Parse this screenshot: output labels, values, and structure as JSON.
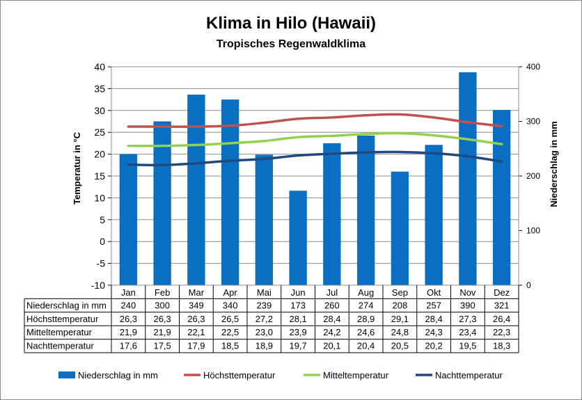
{
  "chart_data": {
    "type": "bar+line",
    "title": "Klima in Hilo (Hawaii)",
    "subtitle": "Tropisches Regenwaldklima",
    "ylabel_left": "Temperatur in °C",
    "ylabel_right": "Niederschlag in mm",
    "ylim_left": [
      -10,
      40
    ],
    "yticks_left": [
      "40",
      "35",
      "30",
      "25",
      "20",
      "15",
      "10",
      "5",
      "0",
      "-5",
      "-10"
    ],
    "ylim_right": [
      0,
      400
    ],
    "yticks_right": [
      "400",
      "300",
      "200",
      "100",
      "0"
    ],
    "grid": true,
    "legend_position": "bottom",
    "categories": [
      "Jan",
      "Feb",
      "Mar",
      "Apr",
      "Mai",
      "Jun",
      "Jul",
      "Aug",
      "Sep",
      "Okt",
      "Nov",
      "Dez"
    ],
    "series": [
      {
        "name": "Niederschlag in mm",
        "type": "bar",
        "axis": "right",
        "color": "#0a6fc2",
        "values": [
          240,
          300,
          349,
          340,
          239,
          173,
          260,
          274,
          208,
          257,
          390,
          321
        ],
        "labels": [
          "240",
          "300",
          "349",
          "340",
          "239",
          "173",
          "260",
          "274",
          "208",
          "257",
          "390",
          "321"
        ]
      },
      {
        "name": "Höchsttemperatur",
        "type": "line",
        "axis": "left",
        "color": "#c0504d",
        "values": [
          26.3,
          26.3,
          26.3,
          26.5,
          27.2,
          28.1,
          28.4,
          28.9,
          29.1,
          28.4,
          27.3,
          26.4
        ],
        "labels": [
          "26,3",
          "26,3",
          "26,3",
          "26,5",
          "27,2",
          "28,1",
          "28,4",
          "28,9",
          "29,1",
          "28,4",
          "27,3",
          "26,4"
        ]
      },
      {
        "name": "Mitteltemperatur",
        "type": "line",
        "axis": "left",
        "color": "#92d050",
        "values": [
          21.9,
          21.9,
          22.1,
          22.5,
          23.0,
          23.9,
          24.2,
          24.6,
          24.8,
          24.3,
          23.4,
          22.3
        ],
        "labels": [
          "21,9",
          "21,9",
          "22,1",
          "22,5",
          "23,0",
          "23,9",
          "24,2",
          "24,6",
          "24,8",
          "24,3",
          "23,4",
          "22,3"
        ]
      },
      {
        "name": "Nachttemperatur",
        "type": "line",
        "axis": "left",
        "color": "#1f497d",
        "values": [
          17.6,
          17.5,
          17.9,
          18.5,
          18.9,
          19.7,
          20.1,
          20.4,
          20.5,
          20.2,
          19.5,
          18.3
        ],
        "labels": [
          "17,6",
          "17,5",
          "17,9",
          "18,5",
          "18,9",
          "19,7",
          "20,1",
          "20,4",
          "20,5",
          "20,2",
          "19,5",
          "18,3"
        ]
      }
    ]
  }
}
